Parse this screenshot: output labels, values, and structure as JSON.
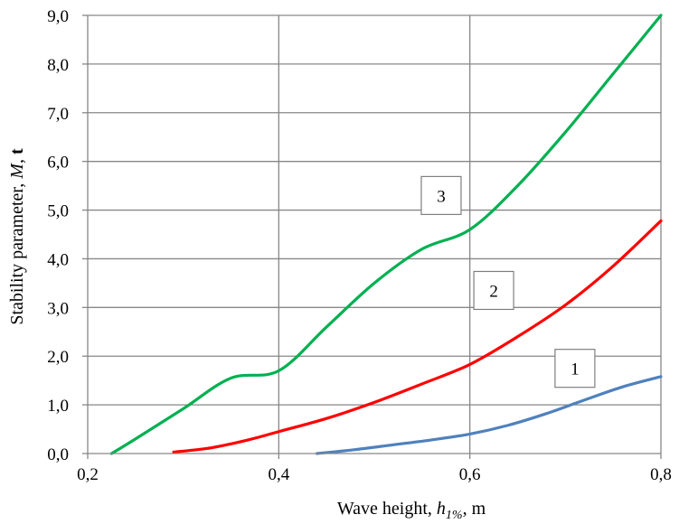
{
  "chart_data": {
    "type": "line",
    "xlabel": {
      "prefix": "Wave height, ",
      "symbol": "h",
      "subscript": "1%",
      "suffix": ", m"
    },
    "ylabel": {
      "prefix": "Stability parameter, ",
      "symbol": "M",
      "sep": ", ",
      "unit": "t"
    },
    "xlim": [
      0.2,
      0.8
    ],
    "ylim": [
      0,
      9
    ],
    "x_ticks": [
      "0,2",
      "0,4",
      "0,6",
      "0,8"
    ],
    "y_ticks": [
      "0,0",
      "1,0",
      "2,0",
      "3,0",
      "4,0",
      "5,0",
      "6,0",
      "7,0",
      "8,0",
      "9,0"
    ],
    "grid": "vertical-only",
    "series": [
      {
        "label": "1",
        "color": "#4f81bd",
        "points": [
          [
            0.44,
            0.0
          ],
          [
            0.48,
            0.08
          ],
          [
            0.52,
            0.18
          ],
          [
            0.56,
            0.28
          ],
          [
            0.6,
            0.4
          ],
          [
            0.64,
            0.58
          ],
          [
            0.68,
            0.82
          ],
          [
            0.72,
            1.1
          ],
          [
            0.76,
            1.37
          ],
          [
            0.8,
            1.58
          ]
        ]
      },
      {
        "label": "2",
        "color": "#ff0000",
        "points": [
          [
            0.29,
            0.03
          ],
          [
            0.33,
            0.12
          ],
          [
            0.37,
            0.29
          ],
          [
            0.4,
            0.45
          ],
          [
            0.45,
            0.72
          ],
          [
            0.5,
            1.05
          ],
          [
            0.55,
            1.43
          ],
          [
            0.6,
            1.83
          ],
          [
            0.65,
            2.4
          ],
          [
            0.7,
            3.05
          ],
          [
            0.75,
            3.85
          ],
          [
            0.8,
            4.78
          ]
        ]
      },
      {
        "label": "3",
        "color": "#00b050",
        "points": [
          [
            0.225,
            0.0
          ],
          [
            0.25,
            0.3
          ],
          [
            0.3,
            0.92
          ],
          [
            0.35,
            1.55
          ],
          [
            0.4,
            1.7
          ],
          [
            0.45,
            2.6
          ],
          [
            0.5,
            3.5
          ],
          [
            0.55,
            4.2
          ],
          [
            0.6,
            4.6
          ],
          [
            0.65,
            5.5
          ],
          [
            0.7,
            6.6
          ],
          [
            0.75,
            7.8
          ],
          [
            0.8,
            9.0
          ]
        ]
      }
    ],
    "callouts": [
      "1",
      "2",
      "3"
    ]
  }
}
